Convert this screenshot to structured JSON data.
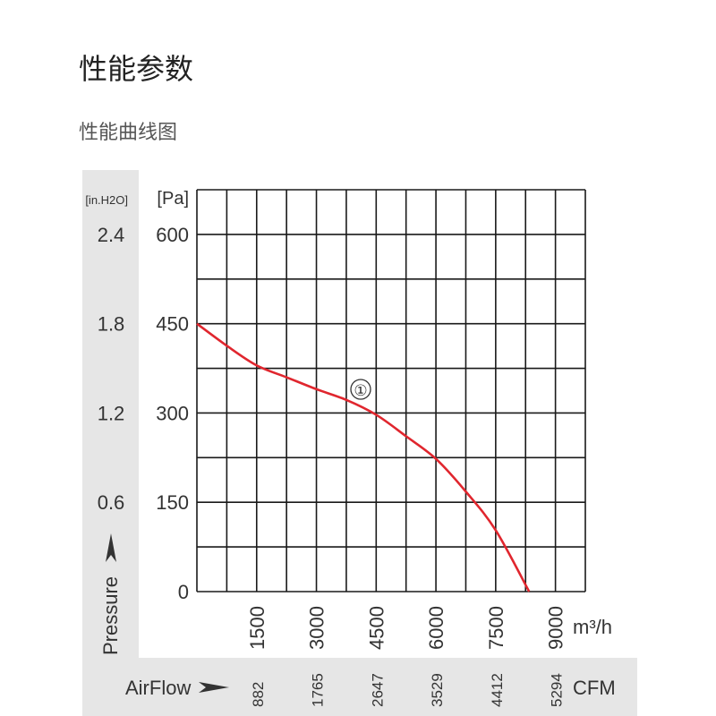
{
  "page": {
    "title": "性能参数",
    "subtitle": "性能曲线图"
  },
  "chart_data": {
    "type": "line",
    "xlabel": "AirFlow",
    "xunit": "m³/h",
    "xunit_secondary": "CFM",
    "ylabel": "Pressure",
    "yunit": "[Pa]",
    "yunit_secondary": "[in.H2O]",
    "xlim": [
      0,
      9750
    ],
    "ylim": [
      0,
      675
    ],
    "grid": true,
    "x_ticks": [
      1500,
      3000,
      4500,
      6000,
      7500,
      9000
    ],
    "x_ticks_secondary": [
      "882",
      "1765",
      "2647",
      "3529",
      "4412",
      "5294"
    ],
    "y_ticks": [
      0,
      150,
      300,
      450,
      600
    ],
    "y_ticks_secondary": [
      "0.6",
      "1.2",
      "1.8",
      "2.4"
    ],
    "series": [
      {
        "name": "①",
        "color": "#e0262e",
        "x": [
          0,
          750,
          1500,
          2250,
          3000,
          3750,
          4500,
          5250,
          6000,
          6750,
          7500,
          8340
        ],
        "y": [
          450,
          413,
          380,
          360,
          340,
          322,
          297,
          261,
          223,
          168,
          103,
          0
        ]
      }
    ]
  }
}
